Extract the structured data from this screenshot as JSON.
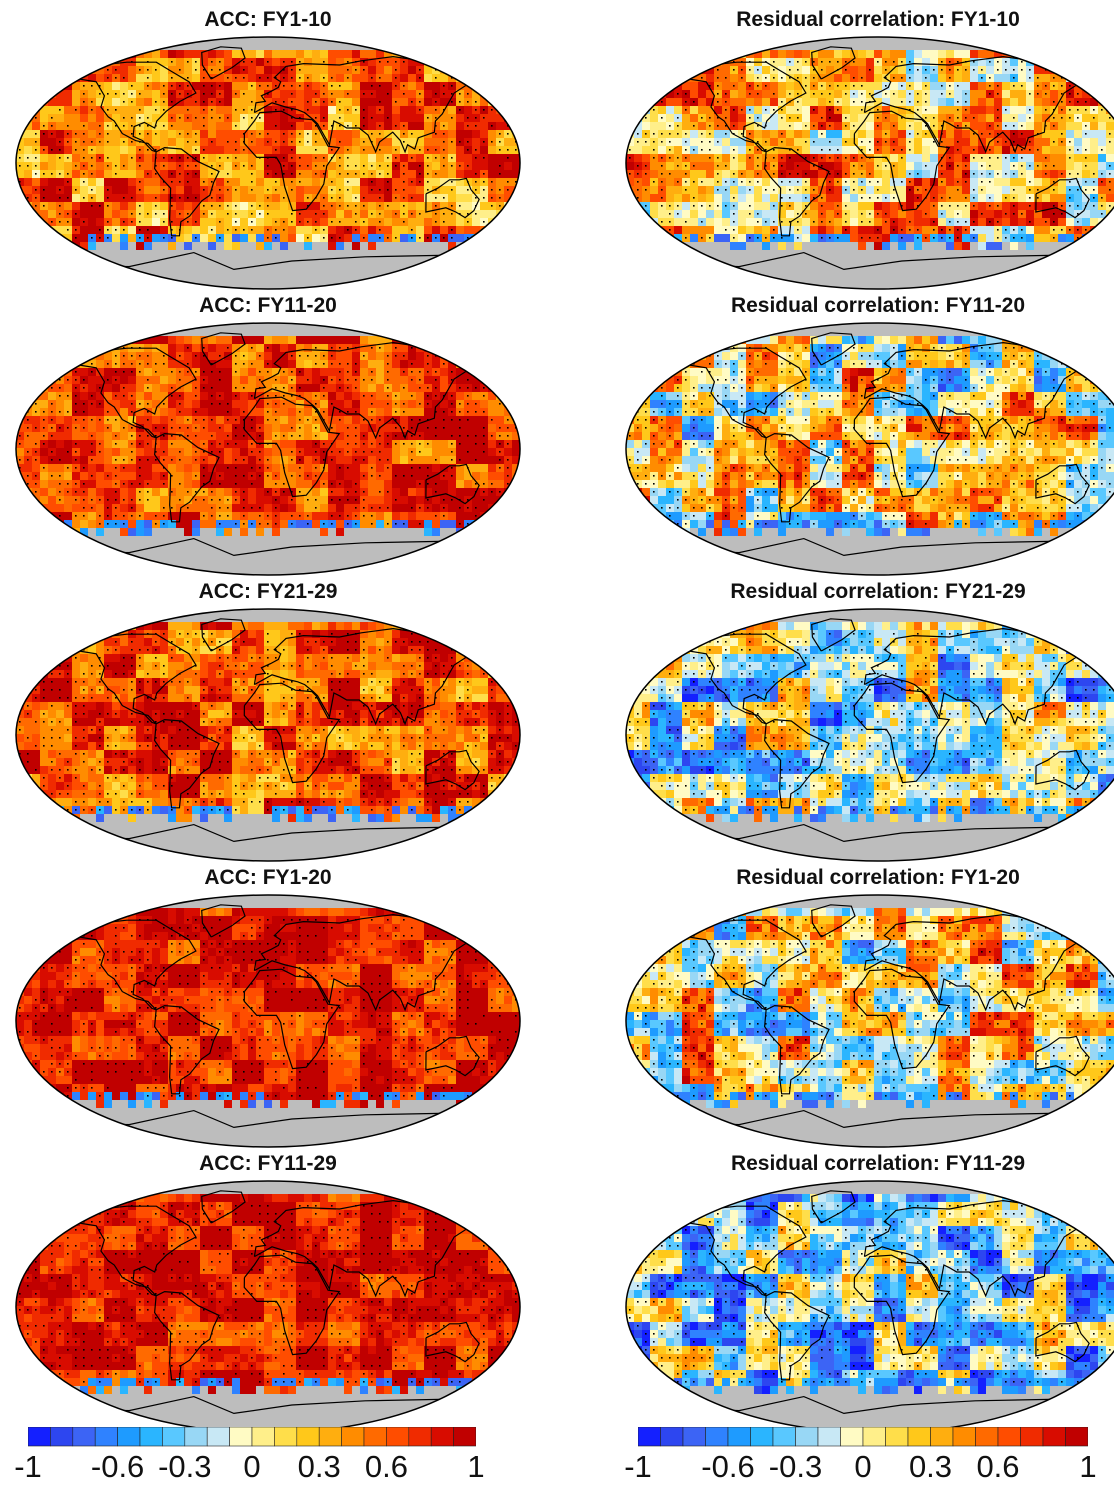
{
  "colors": {
    "land_mask": "#bdbdbd",
    "coast": "#000000",
    "stipple": "#000000",
    "palette": [
      "#1420ff",
      "#2d46f0",
      "#3c64f5",
      "#2f82ff",
      "#1e9bff",
      "#2ab5ff",
      "#59c8ff",
      "#98d7f5",
      "#c8e8f5",
      "#fffbc4",
      "#ffef8a",
      "#ffde4a",
      "#ffc81a",
      "#ffae0f",
      "#ff8c00",
      "#ff6a00",
      "#ff4d00",
      "#f02b00",
      "#d80c00",
      "#c00000"
    ]
  },
  "panels": [
    {
      "title": "ACC: FY1-10",
      "mean": 0.55,
      "spread": 0.55
    },
    {
      "title": "Residual correlation: FY1-10",
      "mean": 0.3,
      "spread": 0.7
    },
    {
      "title": "ACC: FY11-20",
      "mean": 0.7,
      "spread": 0.45
    },
    {
      "title": "Residual correlation: FY11-20",
      "mean": 0.05,
      "spread": 0.8
    },
    {
      "title": "ACC: FY21-29",
      "mean": 0.65,
      "spread": 0.5
    },
    {
      "title": "Residual correlation: FY21-29",
      "mean": -0.15,
      "spread": 0.8
    },
    {
      "title": "ACC: FY1-20",
      "mean": 0.8,
      "spread": 0.35
    },
    {
      "title": "Residual correlation: FY1-20",
      "mean": 0.1,
      "spread": 0.8
    },
    {
      "title": "ACC: FY11-29",
      "mean": 0.78,
      "spread": 0.35
    },
    {
      "title": "Residual correlation: FY11-29",
      "mean": -0.3,
      "spread": 0.75
    }
  ],
  "colorbars": [
    {
      "ticks": [
        "-1",
        "-0.6",
        "-0.3",
        "0",
        "0.3",
        "0.6",
        "1"
      ]
    },
    {
      "ticks": [
        "-1",
        "-0.6",
        "-0.3",
        "0",
        "0.3",
        "0.6",
        "1"
      ]
    }
  ],
  "chart_data": {
    "type": "heatmap",
    "value_range": [
      -1,
      1
    ],
    "colorbar_levels": [
      -1,
      -0.9,
      -0.8,
      -0.7,
      -0.6,
      -0.5,
      -0.4,
      -0.3,
      -0.2,
      -0.1,
      0,
      0.1,
      0.2,
      0.3,
      0.4,
      0.5,
      0.6,
      0.7,
      0.8,
      0.9,
      1
    ],
    "colorbar_tick_values": [
      -1,
      -0.6,
      -0.3,
      0,
      0.3,
      0.6,
      1
    ]
  }
}
